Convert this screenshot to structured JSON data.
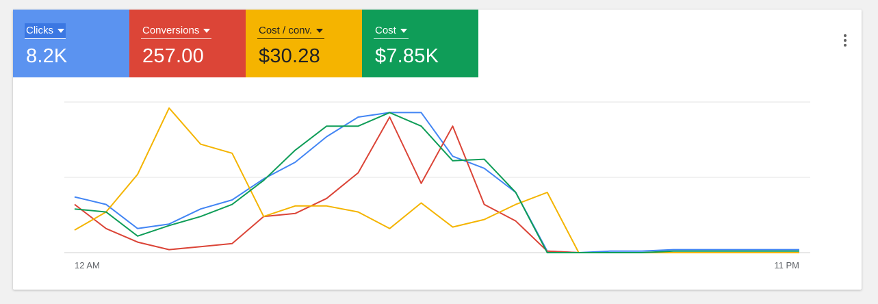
{
  "tiles": [
    {
      "label": "Clicks",
      "value": "8.2K",
      "color": "#5b93f0",
      "active": true
    },
    {
      "label": "Conversions",
      "value": "257.00",
      "color": "#dc4537"
    },
    {
      "label": "Cost / conv.",
      "value": "$30.28",
      "color": "#f5b400"
    },
    {
      "label": "Cost",
      "value": "$7.85K",
      "color": "#0f9d58"
    }
  ],
  "menu": {
    "icon": "more-vert-icon"
  },
  "chart_data": {
    "type": "line",
    "x": [
      0,
      1,
      2,
      3,
      4,
      5,
      6,
      7,
      8,
      9,
      10,
      11,
      12,
      13,
      14,
      15,
      16,
      17,
      18,
      19,
      20,
      21,
      22,
      23
    ],
    "x_tick_labels": [
      "12 AM",
      "11 PM"
    ],
    "ylim": [
      0,
      100
    ],
    "grid": true,
    "legend": "none",
    "series": [
      {
        "color": "#4285f4",
        "values": [
          37,
          32,
          16,
          19,
          29,
          35,
          49,
          60,
          77,
          90,
          93,
          93,
          64,
          56,
          40,
          1,
          0,
          1,
          1,
          2,
          2,
          2,
          2,
          2
        ]
      },
      {
        "color": "#db4437",
        "values": [
          32,
          16,
          7,
          2,
          4,
          6,
          24,
          26,
          36,
          53,
          90,
          46,
          84,
          32,
          21,
          1,
          0,
          0,
          0,
          0,
          0,
          0,
          0,
          0
        ]
      },
      {
        "color": "#f4b400",
        "values": [
          15,
          27,
          52,
          96,
          72,
          66,
          24,
          31,
          31,
          27,
          16,
          33,
          17,
          22,
          32,
          40,
          0,
          0,
          0,
          0,
          0,
          0,
          0,
          0
        ]
      },
      {
        "color": "#0f9d58",
        "values": [
          29,
          27,
          11,
          18,
          24,
          32,
          48,
          68,
          84,
          84,
          93,
          84,
          61,
          62,
          40,
          0,
          0,
          0,
          0,
          1,
          1,
          1,
          1,
          1
        ]
      }
    ]
  }
}
